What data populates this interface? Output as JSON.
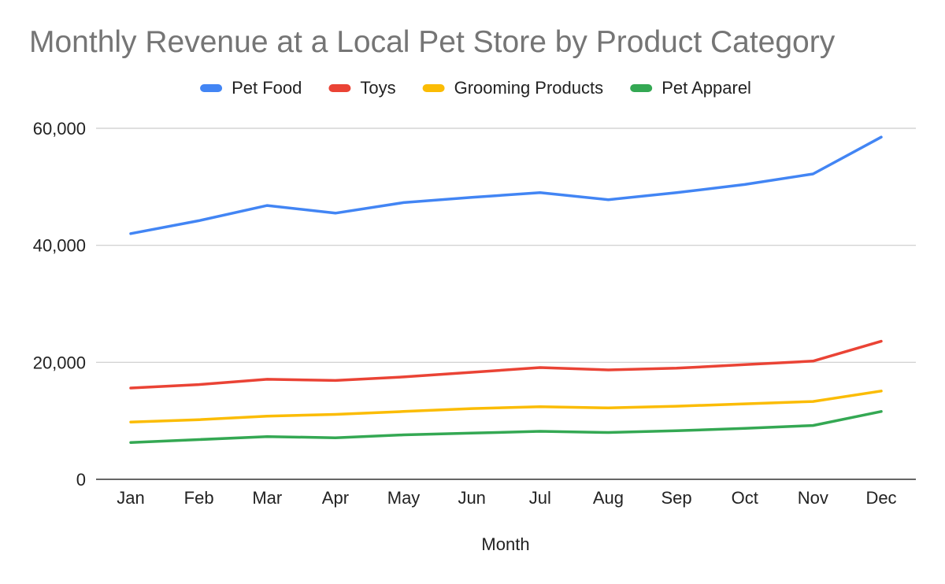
{
  "chart_data": {
    "type": "line",
    "title": "Monthly Revenue at a Local Pet Store by Product Category",
    "xlabel": "Month",
    "ylabel": "",
    "categories": [
      "Jan",
      "Feb",
      "Mar",
      "Apr",
      "May",
      "Jun",
      "Jul",
      "Aug",
      "Sep",
      "Oct",
      "Nov",
      "Dec"
    ],
    "ylim": [
      0,
      60000
    ],
    "yticks": [
      0,
      20000,
      40000,
      60000
    ],
    "ytick_labels": [
      "0",
      "20,000",
      "40,000",
      "60,000"
    ],
    "grid": true,
    "legend_position": "top",
    "series": [
      {
        "name": "Pet Food",
        "color": "#4285F4",
        "values": [
          42000,
          44200,
          46800,
          45500,
          47300,
          48200,
          49000,
          47800,
          49000,
          50400,
          52200,
          58500
        ]
      },
      {
        "name": "Toys",
        "color": "#EA4335",
        "values": [
          15600,
          16200,
          17100,
          16900,
          17500,
          18300,
          19100,
          18700,
          19000,
          19600,
          20200,
          23600
        ]
      },
      {
        "name": "Grooming Products",
        "color": "#FBBC04",
        "values": [
          9800,
          10200,
          10800,
          11100,
          11600,
          12100,
          12400,
          12200,
          12500,
          12900,
          13300,
          15100
        ]
      },
      {
        "name": "Pet Apparel",
        "color": "#34A853",
        "values": [
          6300,
          6800,
          7300,
          7100,
          7600,
          7900,
          8200,
          8000,
          8300,
          8700,
          9200,
          11600
        ]
      }
    ]
  }
}
